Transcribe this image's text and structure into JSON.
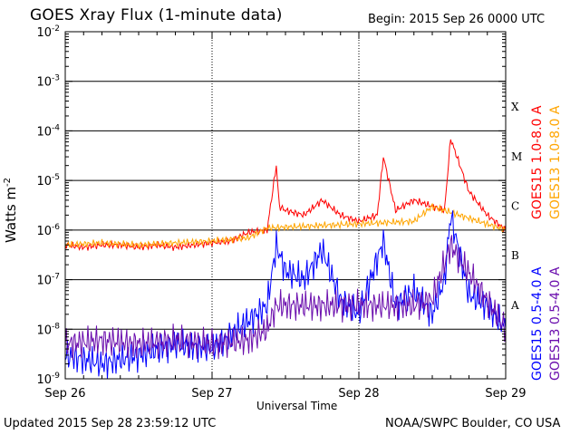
{
  "header": {
    "title": "GOES Xray Flux (1-minute data)",
    "begin": "Begin:  2015 Sep 26 0000 UTC"
  },
  "footer": {
    "updated": "Updated 2015 Sep 28 23:59:12 UTC",
    "credit": "NOAA/SWPC Boulder, CO USA"
  },
  "colors": {
    "goes15_long": "#ff0000",
    "goes13_long": "#ffa500",
    "goes15_short": "#0000ff",
    "goes13_short": "#6a0dad"
  },
  "chart_data": {
    "type": "line",
    "title": "GOES Xray Flux (1-minute data)",
    "xlabel": "Universal Time",
    "ylabel": "Watts m",
    "ylabel_exp": "-2",
    "y_scale": "log",
    "ylim": [
      1e-09,
      0.01
    ],
    "xlim": [
      "2015-09-26T00:00",
      "2015-09-29T00:00"
    ],
    "x_ticks": [
      "Sep 26",
      "Sep 27",
      "Sep 28",
      "Sep 29"
    ],
    "y_ticks": [
      {
        "base": "10",
        "exp": "-9"
      },
      {
        "base": "10",
        "exp": "-8"
      },
      {
        "base": "10",
        "exp": "-7"
      },
      {
        "base": "10",
        "exp": "-6"
      },
      {
        "base": "10",
        "exp": "-5"
      },
      {
        "base": "10",
        "exp": "-4"
      },
      {
        "base": "10",
        "exp": "-3"
      },
      {
        "base": "10",
        "exp": "-2"
      }
    ],
    "flare_classes": [
      {
        "label": "A",
        "flux": 1e-08
      },
      {
        "label": "B",
        "flux": 1e-07
      },
      {
        "label": "C",
        "flux": 1e-06
      },
      {
        "label": "M",
        "flux": 1e-05
      },
      {
        "label": "X",
        "flux": 0.0001
      }
    ],
    "grid": true,
    "series": [
      {
        "name": "GOES15 1.0-8.0 A",
        "color": "#ff0000",
        "x": [
          "2015-09-26T00:00",
          "2015-09-26T03:00",
          "2015-09-26T06:00",
          "2015-09-26T09:00",
          "2015-09-26T12:00",
          "2015-09-26T15:00",
          "2015-09-26T18:00",
          "2015-09-26T21:00",
          "2015-09-27T00:00",
          "2015-09-27T03:00",
          "2015-09-27T06:00",
          "2015-09-27T09:00",
          "2015-09-27T10:30",
          "2015-09-27T11:00",
          "2015-09-27T12:00",
          "2015-09-27T15:00",
          "2015-09-27T18:00",
          "2015-09-27T21:00",
          "2015-09-28T00:00",
          "2015-09-28T03:00",
          "2015-09-28T04:00",
          "2015-09-28T06:00",
          "2015-09-28T09:00",
          "2015-09-28T12:00",
          "2015-09-28T14:00",
          "2015-09-28T15:00",
          "2015-09-28T18:00",
          "2015-09-28T21:00",
          "2015-09-29T00:00"
        ],
        "values": [
          5e-07,
          4.5e-07,
          5e-07,
          5e-07,
          4.5e-07,
          5e-07,
          4.5e-07,
          5e-07,
          5.5e-07,
          6e-07,
          9e-07,
          1e-06,
          2e-05,
          3e-06,
          2.5e-06,
          2e-06,
          4e-06,
          2e-06,
          1.5e-06,
          2e-06,
          3e-05,
          2.5e-06,
          4e-06,
          3e-06,
          2.5e-06,
          7e-05,
          6e-06,
          2e-06,
          1e-06
        ]
      },
      {
        "name": "GOES13 1.0-8.0 A",
        "color": "#ffa500",
        "x": [
          "2015-09-26T00:00",
          "2015-09-26T06:00",
          "2015-09-26T12:00",
          "2015-09-26T18:00",
          "2015-09-27T00:00",
          "2015-09-27T06:00",
          "2015-09-27T09:00",
          "2015-09-28T09:00",
          "2015-09-28T12:00",
          "2015-09-29T00:00"
        ],
        "values": [
          5e-07,
          5.5e-07,
          5e-07,
          5.5e-07,
          6e-07,
          7e-07,
          1.1e-06,
          1.5e-06,
          3e-06,
          1e-06
        ]
      },
      {
        "name": "GOES15 0.5-4.0 A",
        "color": "#0000ff",
        "x": [
          "2015-09-26T00:00",
          "2015-09-26T06:00",
          "2015-09-26T12:00",
          "2015-09-26T18:00",
          "2015-09-27T00:00",
          "2015-09-27T06:00",
          "2015-09-27T09:00",
          "2015-09-27T10:30",
          "2015-09-27T12:00",
          "2015-09-27T15:00",
          "2015-09-27T18:00",
          "2015-09-27T21:00",
          "2015-09-28T00:00",
          "2015-09-28T04:00",
          "2015-09-28T06:00",
          "2015-09-28T09:00",
          "2015-09-28T12:00",
          "2015-09-28T14:00",
          "2015-09-28T15:00",
          "2015-09-28T18:00",
          "2015-09-28T21:00",
          "2015-09-29T00:00"
        ],
        "values": [
          3e-09,
          2e-09,
          3e-09,
          5e-09,
          4e-09,
          1.5e-08,
          3e-08,
          5e-07,
          1.5e-07,
          1e-07,
          4e-07,
          4e-08,
          2e-08,
          6e-07,
          3e-08,
          6e-08,
          2e-08,
          1e-07,
          2e-06,
          5e-08,
          3e-08,
          1e-08
        ]
      },
      {
        "name": "GOES13 0.5-4.0 A",
        "color": "#6a0dad",
        "x": [
          "2015-09-26T00:00",
          "2015-09-26T06:00",
          "2015-09-26T12:00",
          "2015-09-26T18:00",
          "2015-09-27T00:00",
          "2015-09-27T06:00",
          "2015-09-27T09:00",
          "2015-09-27T10:30",
          "2015-09-28T09:00",
          "2015-09-28T12:00",
          "2015-09-28T15:00",
          "2015-09-29T00:00"
        ],
        "values": [
          5e-09,
          6e-09,
          5e-09,
          6e-09,
          5e-09,
          6e-09,
          1e-08,
          3e-08,
          3e-08,
          4e-08,
          5e-07,
          1e-08
        ]
      }
    ]
  }
}
